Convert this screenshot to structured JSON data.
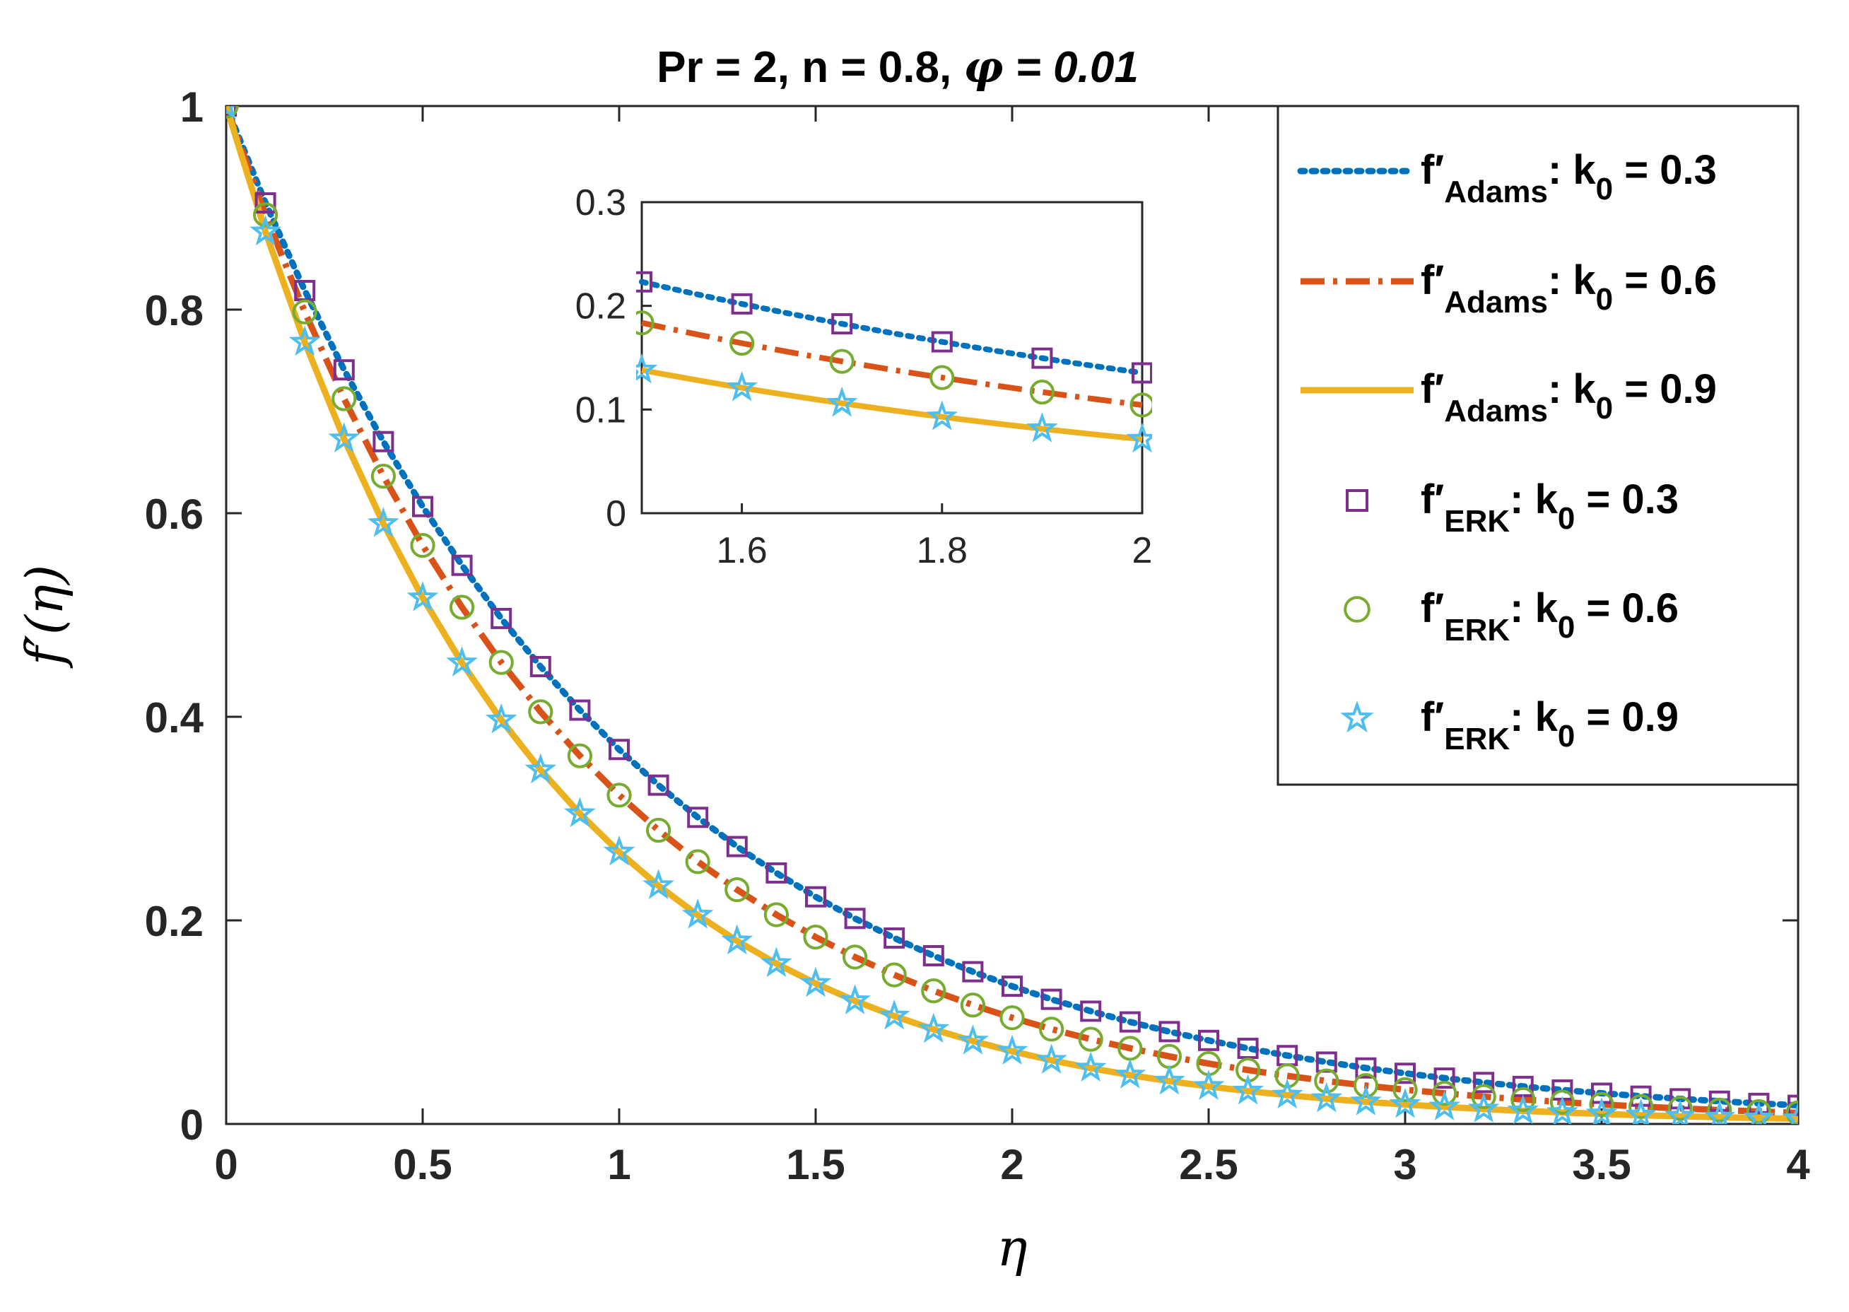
{
  "chart_data": {
    "type": "line",
    "title": {
      "prefix": "Pr = 2, n = 0.8, ",
      "phi_symbol": "φ",
      "phi_value": " = 0.01"
    },
    "xlabel": "η",
    "ylabel": "f′(η)",
    "xlim": [
      0,
      4
    ],
    "ylim": [
      0,
      1
    ],
    "xticks": [
      "0",
      "0.5",
      "1",
      "1.5",
      "2",
      "2.5",
      "3",
      "3.5",
      "4"
    ],
    "yticks": [
      "0",
      "0.2",
      "0.4",
      "0.6",
      "0.8",
      "1"
    ],
    "grid": false,
    "legend_position": "top-right",
    "k0_values": [
      0.3,
      0.6,
      0.9
    ],
    "decay_rates": [
      1.0,
      1.13,
      1.32
    ],
    "series": [
      {
        "name": "f′Adams: k0 = 0.3",
        "k0": 0.3,
        "method": "Adams",
        "style": "dotted",
        "color": "#0072BD"
      },
      {
        "name": "f′Adams: k0 = 0.6",
        "k0": 0.6,
        "method": "Adams",
        "style": "dashdot",
        "color": "#D95319"
      },
      {
        "name": "f′Adams: k0 = 0.9",
        "k0": 0.9,
        "method": "Adams",
        "style": "solid",
        "color": "#EDB120"
      },
      {
        "name": "f′ERK: k0 = 0.3",
        "k0": 0.3,
        "method": "ERK",
        "marker": "square",
        "color": "#7E2F8E"
      },
      {
        "name": "f′ERK: k0 = 0.6",
        "k0": 0.6,
        "method": "ERK",
        "marker": "circle",
        "color": "#77AC30"
      },
      {
        "name": "f′ERK: k0 = 0.9",
        "k0": 0.9,
        "method": "ERK",
        "marker": "star",
        "color": "#4DBEEE"
      }
    ],
    "curve_x": [
      0,
      0.1,
      0.2,
      0.3,
      0.4,
      0.5,
      0.6,
      0.7,
      0.8,
      0.9,
      1.0,
      1.1,
      1.2,
      1.3,
      1.4,
      1.5,
      1.6,
      1.7,
      1.8,
      1.9,
      2.0,
      2.1,
      2.2,
      2.3,
      2.4,
      2.5,
      2.6,
      2.7,
      2.8,
      2.9,
      3.0,
      3.1,
      3.2,
      3.3,
      3.4,
      3.5,
      3.6,
      3.7,
      3.8,
      3.9,
      4.0
    ],
    "marker_x": [
      0,
      0.1,
      0.2,
      0.3,
      0.4,
      0.5,
      0.6,
      0.7,
      0.8,
      0.9,
      1.0,
      1.1,
      1.2,
      1.3,
      1.4,
      1.5,
      1.6,
      1.7,
      1.8,
      1.9,
      2.0,
      2.1,
      2.2,
      2.3,
      2.4,
      2.5,
      2.6,
      2.7,
      2.8,
      2.9,
      3.0,
      3.1,
      3.2,
      3.3,
      3.4,
      3.5,
      3.6,
      3.7,
      3.8,
      3.9,
      4.0
    ],
    "inset": {
      "xlim": [
        1.5,
        2.0
      ],
      "ylim": [
        0,
        0.3
      ],
      "xticks": [
        "1.6",
        "1.8",
        "2"
      ],
      "yticks": [
        "0",
        "0.1",
        "0.2",
        "0.3"
      ],
      "marker_x": [
        1.5,
        1.6,
        1.7,
        1.8,
        1.9,
        2.0
      ]
    },
    "legend": [
      {
        "base": "f′",
        "sub": "Adams",
        "eq": ": k",
        "k_sub": "0",
        "val": " = 0.3"
      },
      {
        "base": "f′",
        "sub": "Adams",
        "eq": ":  k",
        "k_sub": "0",
        "val": " = 0.6"
      },
      {
        "base": "f′",
        "sub": "Adams",
        "eq": ":  k",
        "k_sub": "0",
        "val": " = 0.9"
      },
      {
        "base": "f′",
        "sub": "ERK",
        "eq": ":  k",
        "k_sub": "0",
        "val": " = 0.3"
      },
      {
        "base": "f′",
        "sub": "ERK",
        "eq": ":  k",
        "k_sub": "0",
        "val": " = 0.6"
      },
      {
        "base": "f′",
        "sub": "ERK",
        "eq": ":  k",
        "k_sub": "0",
        "val": " = 0.9"
      }
    ]
  }
}
